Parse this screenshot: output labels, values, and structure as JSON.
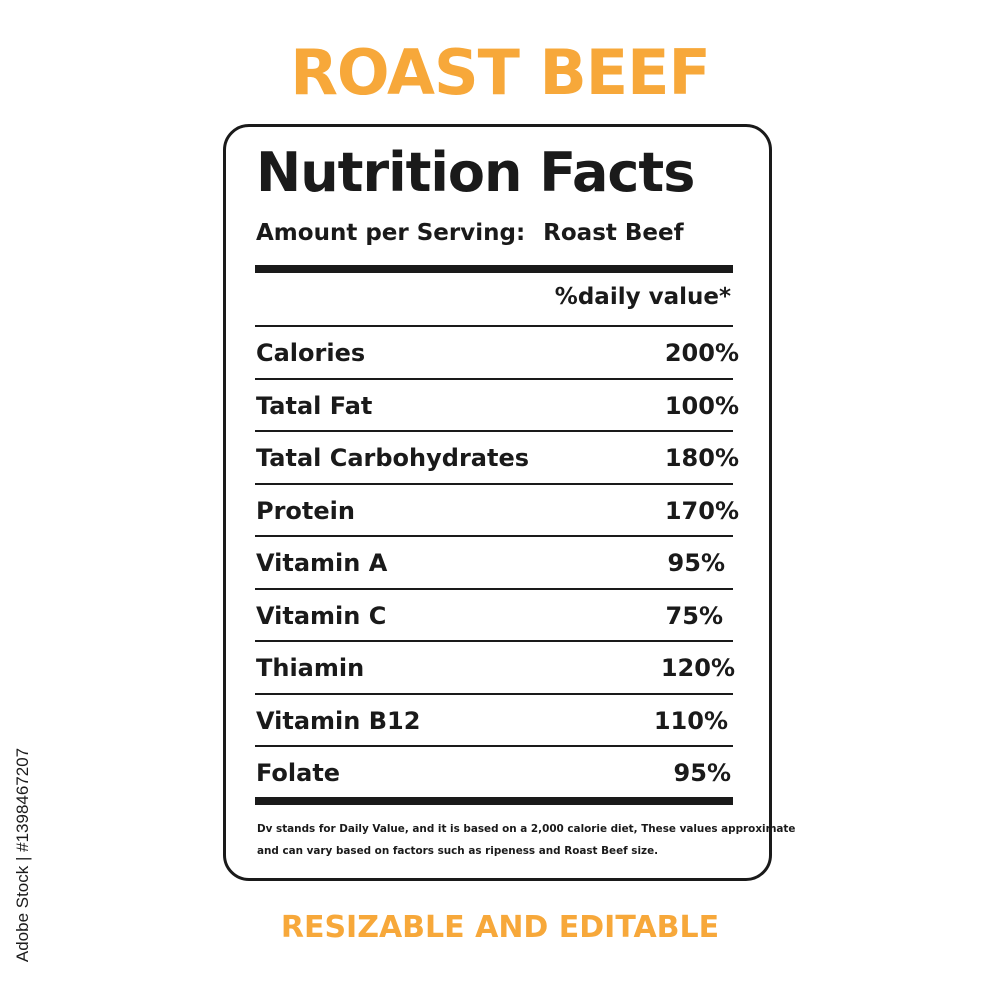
{
  "colors": {
    "accent": "#f7a83a",
    "text": "#1a1a1a",
    "background": "#ffffff"
  },
  "header": {
    "title": "ROAST BEEF"
  },
  "label": {
    "heading": "Nutrition Facts",
    "serving_label": "Amount per Serving:",
    "serving_value": "Roast Beef",
    "column_header": "%daily value*",
    "rows": [
      {
        "name": "Calories",
        "value": "200%"
      },
      {
        "name": "Tatal Fat",
        "value": "100%"
      },
      {
        "name": "Tatal Carbohydrates",
        "value": "180%"
      },
      {
        "name": "Protein",
        "value": "170%"
      },
      {
        "name": "Vitamin A",
        "value": "95%"
      },
      {
        "name": "Vitamin C",
        "value": "75%"
      },
      {
        "name": "Thiamin",
        "value": "120%"
      },
      {
        "name": "Vitamin B12",
        "value": "110%"
      },
      {
        "name": "Folate",
        "value": "95%"
      }
    ],
    "footnote_line1": "Dv stands for Daily Value, and it is based on a 2,000 calorie diet, These values approximate",
    "footnote_line2": "and can vary based on factors such as ripeness and Roast Beef size."
  },
  "footer": {
    "subtitle": "RESIZABLE AND EDITABLE"
  },
  "watermark": {
    "stock_id": "Adobe Stock | #1398467207"
  }
}
